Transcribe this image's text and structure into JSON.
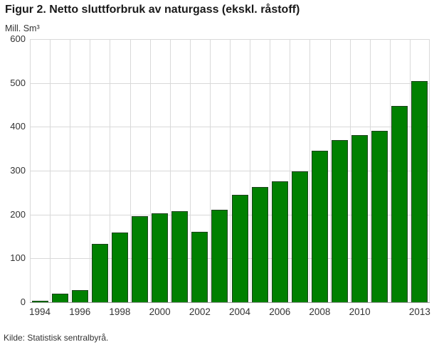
{
  "header": {
    "title": "Figur 2. Netto sluttforbruk av naturgass (ekskl. råstoff)"
  },
  "footer": {
    "source": "Kilde: Statistisk sentralbyrå."
  },
  "colors": {
    "bar_fill": "#008000",
    "bar_border": "#1e421e",
    "grid": "#d9d9d9",
    "axis": "#999999",
    "text": "#333333",
    "title": "#1a1a1a"
  },
  "chart_data": {
    "type": "bar",
    "title": "Figur 2. Netto sluttforbruk av naturgass (ekskl. råstoff)",
    "ylabel": "Mill. Sm³",
    "xlabel": "",
    "categories": [
      "1994",
      "1995",
      "1996",
      "1997",
      "1998",
      "1999",
      "2000",
      "2001",
      "2002",
      "2003",
      "2004",
      "2005",
      "2006",
      "2007",
      "2008",
      "2009",
      "2010",
      "2011",
      "2012",
      "2013"
    ],
    "values": [
      4,
      20,
      28,
      133,
      159,
      197,
      203,
      208,
      160,
      211,
      245,
      262,
      276,
      299,
      346,
      370,
      381,
      391,
      448,
      505
    ],
    "ylim": [
      0,
      600
    ],
    "y_ticks": [
      0,
      100,
      200,
      300,
      400,
      500,
      600
    ],
    "x_tick_labels": [
      "1994",
      "1996",
      "1998",
      "2000",
      "2002",
      "2004",
      "2006",
      "2008",
      "2010",
      "2013"
    ],
    "x_tick_category_indices": [
      0,
      2,
      4,
      6,
      8,
      10,
      12,
      14,
      16,
      19
    ],
    "grid": true,
    "legend_position": "none",
    "source": "Kilde: Statistisk sentralbyrå."
  }
}
